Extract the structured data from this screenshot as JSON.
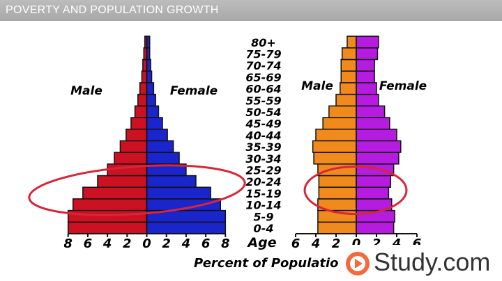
{
  "header": {
    "title": "POVERTY AND POPULATION GROWTH"
  },
  "chart_data": [
    {
      "type": "bar",
      "orientation": "population-pyramid",
      "age_axis_label": "Age",
      "categories": [
        "0-4",
        "5-9",
        "10-14",
        "15-19",
        "20-24",
        "25-29",
        "30-34",
        "35-39",
        "40-44",
        "45-49",
        "50-54",
        "55-59",
        "60-64",
        "65-69",
        "70-74",
        "75-79",
        "80+"
      ],
      "series": [
        {
          "name": "Male",
          "color": "#cc1122",
          "values": [
            8,
            8,
            7.5,
            6.5,
            5,
            4,
            3.3,
            2.7,
            2.1,
            1.6,
            1.2,
            0.9,
            0.7,
            0.5,
            0.4,
            0.3,
            0.2
          ]
        },
        {
          "name": "Female",
          "color": "#1a25cc",
          "values": [
            8,
            8,
            7.5,
            6.5,
            5,
            4,
            3.3,
            2.7,
            2.1,
            1.6,
            1.2,
            0.9,
            0.7,
            0.5,
            0.4,
            0.3,
            0.3
          ]
        }
      ],
      "xticks": [
        "8",
        "6",
        "4",
        "2",
        "0",
        "2",
        "4",
        "6",
        "8"
      ],
      "xlim": [
        -8,
        8
      ],
      "highlight": {
        "from": "10-14",
        "to": "20-24",
        "color": "#d8253a"
      }
    },
    {
      "type": "bar",
      "orientation": "population-pyramid",
      "categories": [
        "0-4",
        "5-9",
        "10-14",
        "15-19",
        "20-24",
        "25-29",
        "30-34",
        "35-39",
        "40-44",
        "45-49",
        "50-54",
        "55-59",
        "60-64",
        "65-69",
        "70-74",
        "75-79",
        "80+"
      ],
      "series": [
        {
          "name": "Male",
          "color": "#f08a1c",
          "values": [
            3.8,
            3.8,
            3.8,
            3.7,
            3.7,
            3.8,
            4.2,
            4.3,
            4.0,
            3.3,
            2.7,
            2.0,
            1.6,
            1.5,
            1.5,
            1.4,
            0.9
          ]
        },
        {
          "name": "Female",
          "color": "#b61ce0",
          "values": [
            3.7,
            3.8,
            3.5,
            3.2,
            3.4,
            3.7,
            4.2,
            4.4,
            4.0,
            3.3,
            2.8,
            2.2,
            2.0,
            1.8,
            1.8,
            2.1,
            2.2
          ]
        }
      ],
      "xticks": [
        "6",
        "4",
        "2",
        "0",
        "2",
        "4",
        "6"
      ],
      "xlim": [
        -6,
        6
      ],
      "highlight": {
        "from": "10-14",
        "to": "20-24",
        "color": "#d8253a"
      }
    }
  ],
  "xaxis_label": "Percent of Populatio",
  "logo": {
    "text": "Study.com",
    "icon": "play-icon",
    "color": "#f26a3d"
  }
}
